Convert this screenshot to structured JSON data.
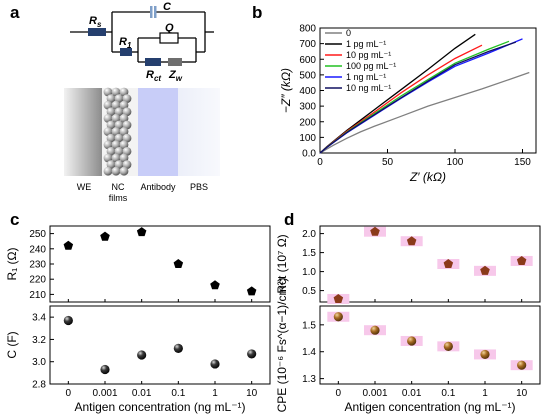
{
  "panels": {
    "a": "a",
    "b": "b",
    "c": "c",
    "d": "d"
  },
  "circuit": {
    "labels": {
      "rs": "R",
      "rs_sub": "s",
      "c": "C",
      "r1": "R",
      "r1_sub": "1",
      "q": "Q",
      "rct": "R",
      "rct_sub": "ct",
      "zw": "Z",
      "zw_sub": "w"
    },
    "layers": [
      "WE",
      "NC films",
      "Antibody",
      "PBS"
    ]
  },
  "colors": {
    "ink": "#000000",
    "grey": "#808080",
    "red": "#ff1a1a",
    "green": "#22c022",
    "blue": "#1a1aff",
    "navy": "#101060",
    "cap": "#7f9fc8",
    "resistor": "#253f6e",
    "warburg": "#6e6e6e",
    "antibody": "#c8cdf8",
    "pink": "#f7c8ea"
  },
  "chart_data": [
    {
      "id": "b",
      "type": "line",
      "xlabel": "Z′ (kΩ)",
      "ylabel": "−Z″ (kΩ)",
      "xlim": [
        0,
        160
      ],
      "ylim": [
        0,
        800
      ],
      "xticks": [
        0,
        50,
        100,
        150
      ],
      "yticks": [
        0,
        100,
        200,
        300,
        400,
        500,
        600,
        700,
        800
      ],
      "legend_position": "top-left",
      "series": [
        {
          "name": "0",
          "color": "#808080",
          "x": [
            0,
            5,
            10,
            20,
            30,
            40,
            60,
            80,
            100,
            120,
            140,
            155
          ],
          "y": [
            0,
            25,
            50,
            95,
            135,
            170,
            235,
            300,
            355,
            410,
            470,
            515
          ]
        },
        {
          "name": "1 pg mL⁻¹",
          "color": "#000000",
          "x": [
            0,
            5,
            10,
            20,
            30,
            40,
            60,
            80,
            100,
            115
          ],
          "y": [
            0,
            40,
            75,
            145,
            210,
            275,
            405,
            535,
            670,
            760
          ]
        },
        {
          "name": "10 pg mL⁻¹",
          "color": "#ff1a1a",
          "x": [
            0,
            5,
            10,
            20,
            30,
            40,
            60,
            80,
            100,
            120
          ],
          "y": [
            0,
            38,
            72,
            140,
            200,
            260,
            385,
            500,
            605,
            690
          ]
        },
        {
          "name": "100 pg mL⁻¹",
          "color": "#22c022",
          "x": [
            0,
            5,
            10,
            20,
            30,
            40,
            60,
            80,
            100,
            125,
            140
          ],
          "y": [
            0,
            37,
            70,
            135,
            193,
            250,
            365,
            470,
            575,
            665,
            715
          ]
        },
        {
          "name": "1 ng mL⁻¹",
          "color": "#1a1aff",
          "x": [
            0,
            5,
            10,
            20,
            30,
            40,
            60,
            80,
            100,
            125,
            150
          ],
          "y": [
            0,
            35,
            67,
            130,
            185,
            240,
            350,
            455,
            555,
            640,
            730
          ]
        },
        {
          "name": "10 ng mL⁻¹",
          "color": "#101060",
          "x": [
            0,
            5,
            10,
            20,
            30,
            40,
            60,
            80,
            100,
            125,
            145
          ],
          "y": [
            0,
            36,
            68,
            132,
            188,
            243,
            353,
            460,
            565,
            650,
            710
          ]
        }
      ]
    },
    {
      "id": "c",
      "type": "scatter",
      "xlabel": "Antigen concentration (ng mL⁻¹)",
      "categories": [
        "0",
        "0.001",
        "0.01",
        "0.1",
        "1",
        "10"
      ],
      "subplots": [
        {
          "ylabel": "R₁ (Ω)",
          "ylim": [
            205,
            255
          ],
          "yticks": [
            210,
            220,
            230,
            240,
            250
          ],
          "marker": "pentagon",
          "values": [
            242,
            248,
            251,
            230,
            216,
            212
          ]
        },
        {
          "ylabel": "C (F)",
          "ylim": [
            2.8,
            3.5
          ],
          "yticks": [
            2.8,
            3.0,
            3.2,
            3.4
          ],
          "marker": "sphere",
          "values": [
            3.37,
            2.93,
            3.06,
            3.12,
            2.98,
            3.07
          ]
        }
      ]
    },
    {
      "id": "d",
      "type": "scatter",
      "xlabel": "Antigen concentration (ng mL⁻¹)",
      "categories": [
        "0",
        "0.001",
        "0.01",
        "0.1",
        "1",
        "10"
      ],
      "subplots": [
        {
          "ylabel": "Rct (10⁷ Ω)",
          "ylim": [
            0.2,
            2.2
          ],
          "yticks": [
            0.5,
            1.0,
            1.5,
            2.0
          ],
          "marker": "pentagon",
          "values": [
            0.28,
            2.05,
            1.8,
            1.2,
            1.02,
            1.28
          ]
        },
        {
          "ylabel": "CPE (10⁻⁶ Fs^(α−1)/cm²)",
          "ylim": [
            1.28,
            1.57
          ],
          "yticks": [
            1.3,
            1.4,
            1.5
          ],
          "marker": "sphere",
          "values": [
            1.53,
            1.48,
            1.44,
            1.42,
            1.39,
            1.35
          ]
        }
      ]
    }
  ]
}
